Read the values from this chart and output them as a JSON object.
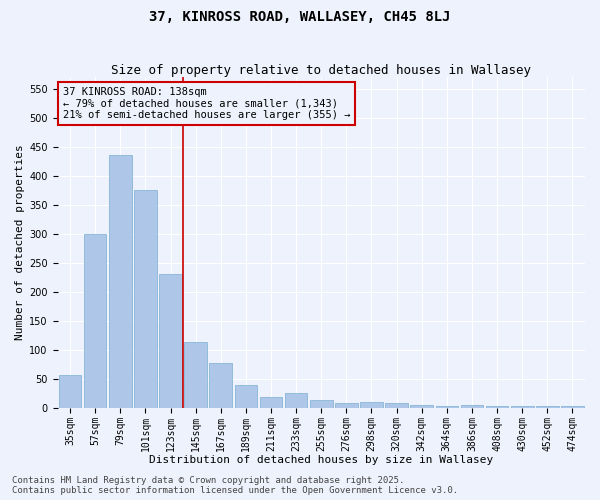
{
  "title": "37, KINROSS ROAD, WALLASEY, CH45 8LJ",
  "subtitle": "Size of property relative to detached houses in Wallasey",
  "xlabel": "Distribution of detached houses by size in Wallasey",
  "ylabel": "Number of detached properties",
  "categories": [
    "35sqm",
    "57sqm",
    "79sqm",
    "101sqm",
    "123sqm",
    "145sqm",
    "167sqm",
    "189sqm",
    "211sqm",
    "233sqm",
    "255sqm",
    "276sqm",
    "298sqm",
    "320sqm",
    "342sqm",
    "364sqm",
    "386sqm",
    "408sqm",
    "430sqm",
    "452sqm",
    "474sqm"
  ],
  "values": [
    57,
    300,
    435,
    375,
    230,
    113,
    78,
    40,
    18,
    25,
    13,
    8,
    10,
    8,
    5,
    3,
    5,
    3,
    3,
    3,
    3
  ],
  "bar_color": "#aec6e8",
  "bar_edge_color": "#7aafd4",
  "vline_color": "#cc0000",
  "vline_x_index": 4.5,
  "annotation_title": "37 KINROSS ROAD: 138sqm",
  "annotation_line1": "← 79% of detached houses are smaller (1,343)",
  "annotation_line2": "21% of semi-detached houses are larger (355) →",
  "annotation_box_color": "#cc0000",
  "ylim": [
    0,
    570
  ],
  "yticks": [
    0,
    50,
    100,
    150,
    200,
    250,
    300,
    350,
    400,
    450,
    500,
    550
  ],
  "footer1": "Contains HM Land Registry data © Crown copyright and database right 2025.",
  "footer2": "Contains public sector information licensed under the Open Government Licence v3.0.",
  "bg_color": "#eef2fc",
  "title_fontsize": 10,
  "subtitle_fontsize": 9,
  "axis_label_fontsize": 8,
  "tick_fontsize": 7,
  "annotation_fontsize": 7.5,
  "footer_fontsize": 6.5
}
